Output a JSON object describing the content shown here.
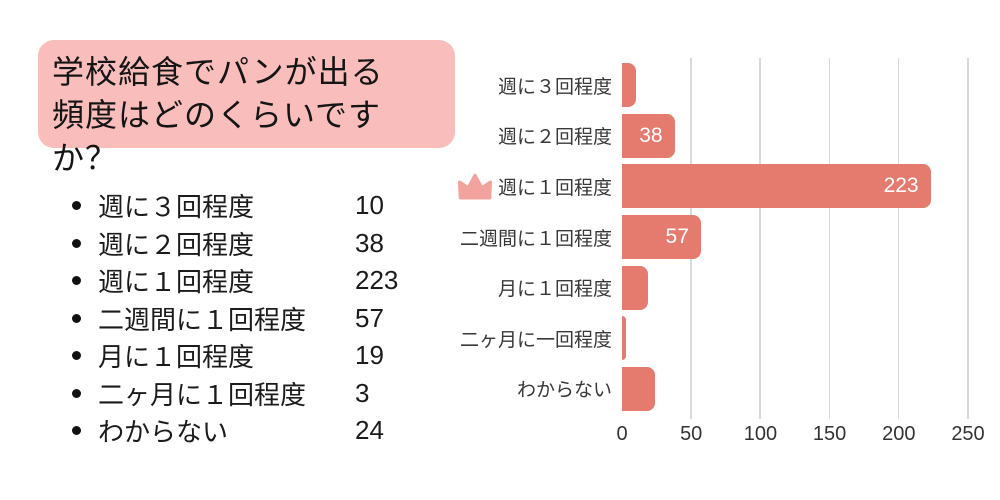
{
  "title_card": {
    "lines": [
      "学校給食でパンが出る",
      "頻度はどのくらいですか？"
    ],
    "background": "#f9bebc"
  },
  "summary_list": {
    "items": [
      {
        "label": "週に３回程度",
        "value": "10"
      },
      {
        "label": "週に２回程度",
        "value": "38"
      },
      {
        "label": "週に１回程度",
        "value": "223"
      },
      {
        "label": "二週間に１回程度",
        "value": "57"
      },
      {
        "label": "月に１回程度",
        "value": "19"
      },
      {
        "label": "二ヶ月に１回程度",
        "value": "3"
      },
      {
        "label": "わからない",
        "value": "24"
      }
    ]
  },
  "chart_data": {
    "type": "bar",
    "orientation": "horizontal",
    "categories": [
      "週に３回程度",
      "週に２回程度",
      "週に１回程度",
      "二週間に１回程度",
      "月に１回程度",
      "二ヶ月に一回程度",
      "わからない"
    ],
    "values": [
      10,
      38,
      223,
      57,
      19,
      3,
      24
    ],
    "bar_value_labels": [
      "",
      "38",
      "223",
      "57",
      "",
      "",
      ""
    ],
    "crowned_category_index": 2,
    "xlim": [
      0,
      250
    ],
    "xticks": [
      0,
      50,
      100,
      150,
      200,
      250
    ],
    "grid": true,
    "legend": false,
    "bar_color": "#e57a6e",
    "gridline_color": "#d9d9d9",
    "crown_color": "#f2a39e"
  }
}
